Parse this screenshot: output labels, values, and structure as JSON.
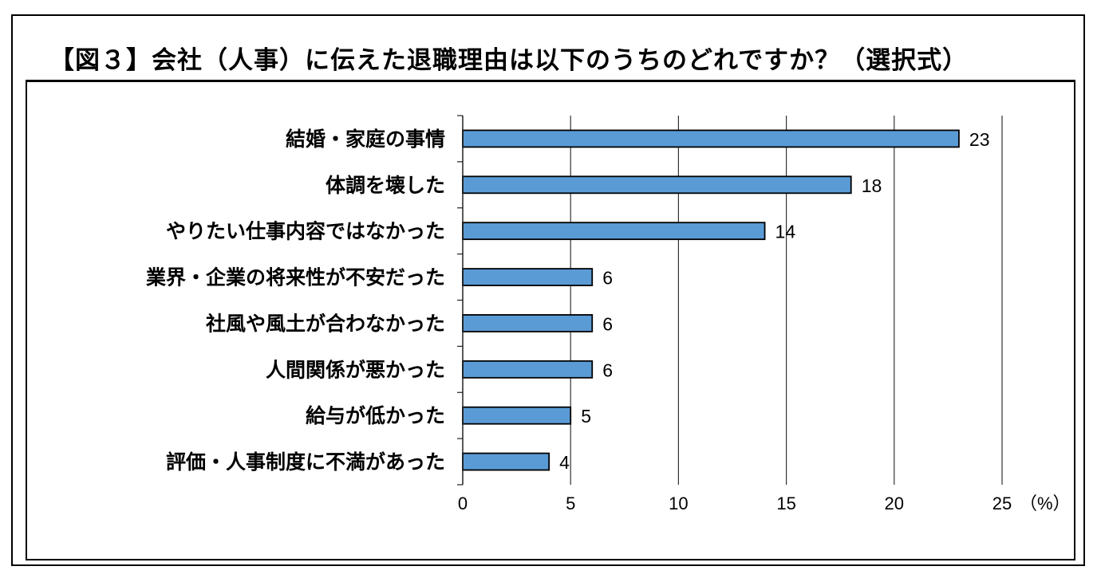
{
  "title": "【図３】会社（人事）に伝えた退職理由は以下のうちのどれですか？（選択式）",
  "chart_data": {
    "type": "bar",
    "orientation": "horizontal",
    "categories": [
      "結婚・家庭の事情",
      "体調を壊した",
      "やりたい仕事内容ではなかった",
      "業界・企業の将来性が不安だった",
      "社風や風土が合わなかった",
      "人間関係が悪かった",
      "給与が低かった",
      "評価・人事制度に不満があった"
    ],
    "values": [
      23,
      18,
      14,
      6,
      6,
      6,
      5,
      4
    ],
    "xlim": [
      0,
      25
    ],
    "xticks": [
      0,
      5,
      10,
      15,
      20,
      25
    ],
    "unit": "（%）",
    "grid": "vertical",
    "bar_color": "#5b9bd5"
  }
}
